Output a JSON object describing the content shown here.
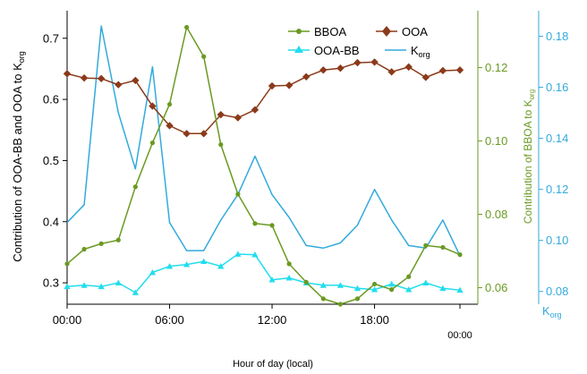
{
  "chart_data": {
    "type": "line",
    "x": [
      "00:00",
      "01:00",
      "02:00",
      "03:00",
      "04:00",
      "05:00",
      "06:00",
      "07:00",
      "08:00",
      "09:00",
      "10:00",
      "11:00",
      "12:00",
      "13:00",
      "14:00",
      "15:00",
      "16:00",
      "17:00",
      "18:00",
      "19:00",
      "20:00",
      "21:00",
      "22:00",
      "23:00"
    ],
    "xticks": [
      "00:00",
      "06:00",
      "12:00",
      "18:00",
      "00:00"
    ],
    "xlabel": "Hour of day (local)",
    "axes": {
      "left": {
        "label": "Contribution of OOA-BB and OOA to K",
        "label_sub": "org",
        "ylim": [
          0.265,
          0.745
        ],
        "ticks": [
          0.3,
          0.4,
          0.5,
          0.6,
          0.7
        ],
        "tick_labels": [
          "0.3",
          "0.4",
          "0.5",
          "0.6",
          "0.7"
        ],
        "color": "#000000"
      },
      "right1": {
        "label": "Contribution of BBOA to K",
        "label_sub": "org",
        "ylim": [
          0.0555,
          0.1355
        ],
        "ticks": [
          0.06,
          0.08,
          0.1,
          0.12
        ],
        "tick_labels": [
          "0.06",
          "0.08",
          "0.10",
          "0.12"
        ],
        "color": "#6a9a22"
      },
      "right2": {
        "label": "K",
        "label_sub": "org",
        "ylim": [
          0.075,
          0.19
        ],
        "ticks": [
          0.08,
          0.1,
          0.12,
          0.14,
          0.16,
          0.18
        ],
        "tick_labels": [
          "0.08",
          "0.10",
          "0.12",
          "0.14",
          "0.16",
          "0.18"
        ],
        "color": "#33aadd"
      }
    },
    "series": [
      {
        "name": "BBOA",
        "axis": "right1",
        "color": "#6a9a22",
        "marker": "circle",
        "values": [
          0.0665,
          0.0705,
          0.072,
          0.073,
          0.0875,
          0.0995,
          0.11,
          0.131,
          0.123,
          0.099,
          0.0855,
          0.0775,
          0.077,
          0.0665,
          0.0615,
          0.057,
          0.0555,
          0.057,
          0.061,
          0.0595,
          0.063,
          0.0715,
          0.071,
          0.069
        ]
      },
      {
        "name": "OOA",
        "axis": "left",
        "color": "#8b3a1a",
        "marker": "diamond",
        "values": [
          0.642,
          0.635,
          0.634,
          0.624,
          0.631,
          0.589,
          0.557,
          0.544,
          0.544,
          0.575,
          0.57,
          0.583,
          0.622,
          0.623,
          0.637,
          0.648,
          0.651,
          0.66,
          0.661,
          0.645,
          0.653,
          0.636,
          0.647,
          0.648
        ]
      },
      {
        "name": "OOA-BB",
        "axis": "left",
        "color": "#22ddee",
        "marker": "triangle",
        "values": [
          0.294,
          0.296,
          0.294,
          0.3,
          0.284,
          0.317,
          0.327,
          0.33,
          0.335,
          0.327,
          0.347,
          0.346,
          0.305,
          0.308,
          0.3,
          0.296,
          0.296,
          0.291,
          0.289,
          0.298,
          0.289,
          0.3,
          0.291,
          0.288
        ]
      },
      {
        "name": "K",
        "name_sub": "org",
        "axis": "right2",
        "color": "#33aadd",
        "marker": "none",
        "values": [
          0.107,
          0.114,
          0.184,
          0.15,
          0.128,
          0.168,
          0.107,
          0.096,
          0.096,
          0.108,
          0.118,
          0.133,
          0.118,
          0.109,
          0.098,
          0.097,
          0.099,
          0.106,
          0.12,
          0.108,
          0.098,
          0.097,
          0.108,
          0.094
        ]
      }
    ],
    "legend": "top-right"
  }
}
